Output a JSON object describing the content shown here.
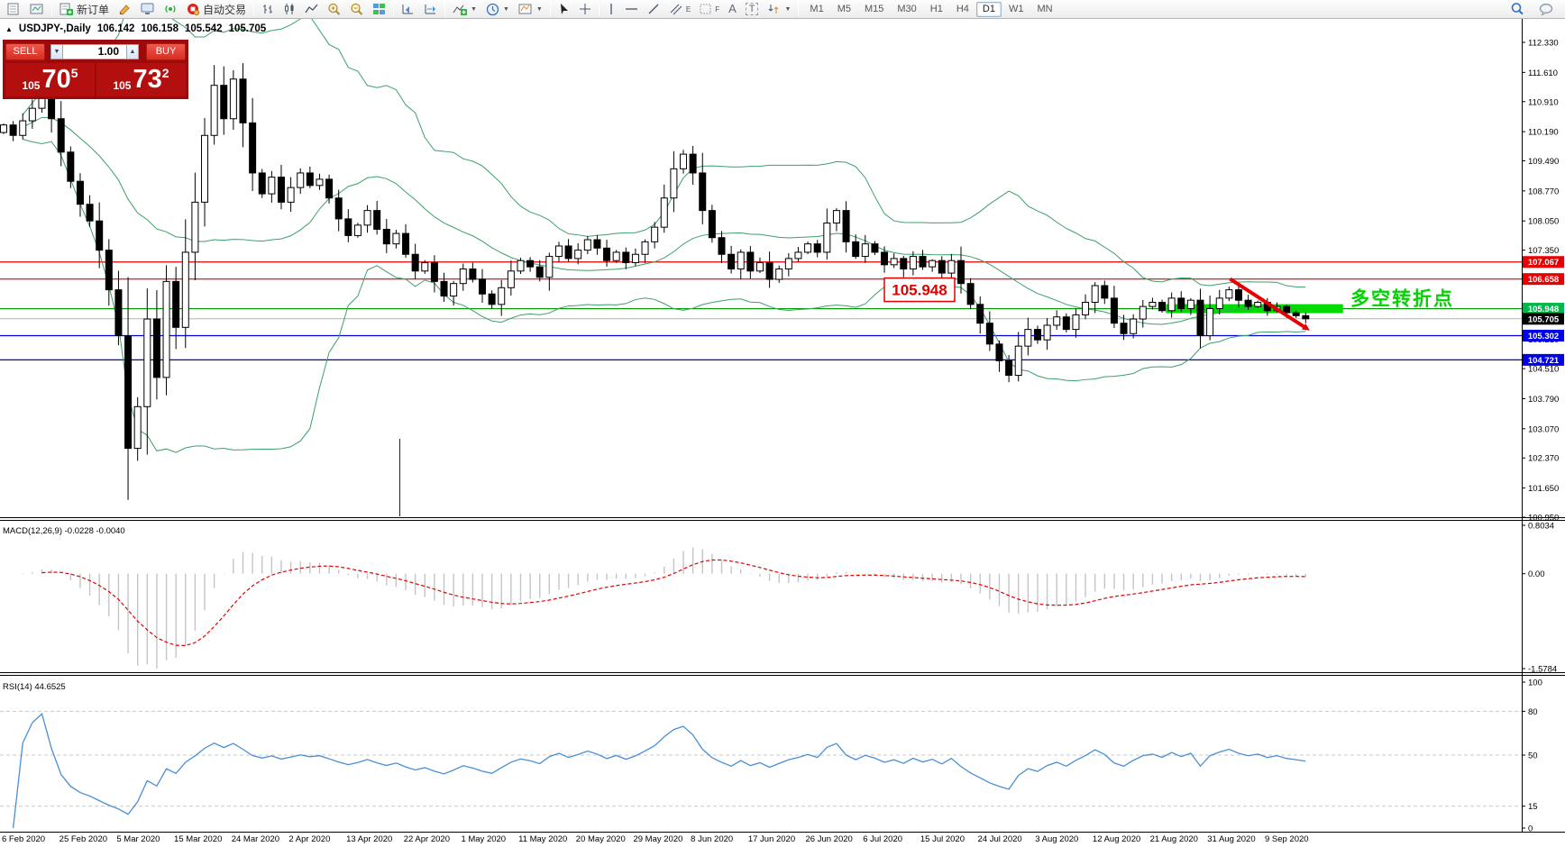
{
  "toolbar": {
    "new_order_label": "新订单",
    "autotrade_label": "自动交易",
    "timeframes": [
      "M1",
      "M5",
      "M15",
      "M30",
      "H1",
      "H4",
      "D1",
      "W1",
      "MN"
    ],
    "active_timeframe": "D1",
    "icon_glyphs": {
      "text_tool": "A",
      "label_tool": "T",
      "fibo_suffix": "E",
      "grid_suffix": "F"
    }
  },
  "symbol_bar": {
    "symbol": "USDJPY-,Daily",
    "open": "106.142",
    "high": "106.158",
    "low": "105.542",
    "close": "105.705"
  },
  "trade_panel": {
    "sell_label": "SELL",
    "buy_label": "BUY",
    "volume": "1.00",
    "sell_price_prefix": "105",
    "sell_price_big": "70",
    "sell_price_sup": "5",
    "buy_price_prefix": "105",
    "buy_price_big": "73",
    "buy_price_sup": "2"
  },
  "chart_data": {
    "type": "candlestick",
    "symbol": "USDJPY",
    "timeframe": "Daily",
    "price_axis_ticks": [
      "112.330",
      "111.610",
      "110.910",
      "110.190",
      "109.490",
      "108.770",
      "108.050",
      "107.350",
      "105.210",
      "104.510",
      "103.790",
      "103.070",
      "102.370",
      "101.650",
      "100.950"
    ],
    "closes": [
      110.35,
      110.1,
      110.45,
      110.75,
      111.0,
      110.5,
      109.7,
      109.0,
      108.45,
      108.05,
      107.35,
      106.4,
      105.3,
      102.6,
      103.6,
      105.7,
      104.3,
      106.6,
      105.5,
      107.3,
      108.5,
      110.1,
      111.3,
      110.5,
      111.45,
      110.4,
      109.2,
      108.7,
      109.1,
      108.5,
      108.85,
      109.2,
      108.9,
      109.05,
      108.6,
      108.1,
      107.7,
      107.95,
      108.3,
      107.85,
      107.5,
      107.75,
      107.25,
      106.85,
      107.05,
      106.6,
      106.25,
      106.55,
      106.9,
      106.65,
      106.3,
      106.05,
      106.45,
      106.85,
      107.1,
      106.95,
      106.7,
      107.2,
      107.45,
      107.15,
      107.35,
      107.6,
      107.4,
      107.1,
      107.3,
      107.05,
      107.25,
      107.55,
      107.9,
      108.6,
      109.3,
      109.65,
      109.2,
      108.3,
      107.65,
      107.25,
      106.9,
      107.3,
      106.85,
      107.05,
      106.65,
      106.9,
      107.15,
      107.3,
      107.5,
      107.3,
      108.0,
      108.3,
      107.55,
      107.2,
      107.5,
      107.3,
      107.0,
      107.15,
      106.9,
      107.2,
      106.95,
      107.1,
      106.8,
      107.1,
      106.55,
      106.05,
      105.6,
      105.1,
      104.7,
      104.35,
      105.05,
      105.45,
      105.2,
      105.55,
      105.75,
      105.45,
      105.8,
      106.1,
      106.5,
      106.2,
      105.6,
      105.35,
      105.7,
      106.0,
      106.1,
      105.9,
      106.2,
      105.95,
      106.15,
      105.3,
      105.95,
      106.2,
      106.4,
      106.15,
      106.0,
      106.1,
      105.9,
      106.0,
      105.85,
      105.78,
      105.705
    ],
    "horizontal_lines": [
      {
        "price": 107.067,
        "color": "#e00000",
        "tag": "107.067"
      },
      {
        "price": 106.658,
        "color": "#e00000",
        "tag": "106.658"
      },
      {
        "price": 105.948,
        "color": "#009900",
        "tag": "105.948"
      },
      {
        "price": 105.302,
        "color": "#0000dd",
        "tag": "105.302"
      },
      {
        "price": 104.721,
        "color": "#0000dd",
        "tag": "104.721"
      }
    ],
    "bid_line": {
      "price": 105.705,
      "tag": "105.705"
    },
    "price_label_box": {
      "text": "105.948",
      "price": 105.948
    },
    "annotation_text": "多空转折点",
    "annotation_color": "#00d300",
    "highlight_band": {
      "price": 105.948,
      "x_from_bar": 121.4,
      "x_to_bar": 139.9,
      "color": "#00dc00"
    },
    "trend_arrow": {
      "from_bar": 128.1,
      "from_price": 106.66,
      "to_bar": 135.8,
      "to_price": 105.52,
      "color": "#e80000"
    },
    "indicators": {
      "bollinger": {
        "period": 20,
        "deviation": 2,
        "color": "#3ca06a"
      },
      "macd": {
        "label": "MACD(12,26,9) -0.0228 -0.0040",
        "axis_max": "0.8034",
        "axis_zero": "0.00",
        "axis_min": "-1.5784",
        "histogram_color": "#c4c4c4",
        "signal_color": "#e00000"
      },
      "rsi": {
        "label": "RSI(14) 44.6525",
        "axis_ticks": [
          "100",
          "80",
          "50",
          "15",
          "0"
        ],
        "levels": [
          80,
          50,
          15
        ],
        "color": "#4a8fd3"
      }
    },
    "date_labels": [
      "6 Feb 2020",
      "25 Feb 2020",
      "5 Mar 2020",
      "15 Mar 2020",
      "24 Mar 2020",
      "2 Apr 2020",
      "13 Apr 2020",
      "22 Apr 2020",
      "1 May 2020",
      "11 May 2020",
      "20 May 2020",
      "29 May 2020",
      "8 Jun 2020",
      "17 Jun 2020",
      "26 Jun 2020",
      "6 Jul 2020",
      "15 Jul 2020",
      "24 Jul 2020",
      "3 Aug 2020",
      "12 Aug 2020",
      "21 Aug 2020",
      "31 Aug 2020",
      "9 Sep 2020"
    ]
  },
  "colors": {
    "tag_green": "#00b84a",
    "tag_red": "#e60000",
    "tag_blue": "#0000e6",
    "tag_black": "#000000"
  }
}
